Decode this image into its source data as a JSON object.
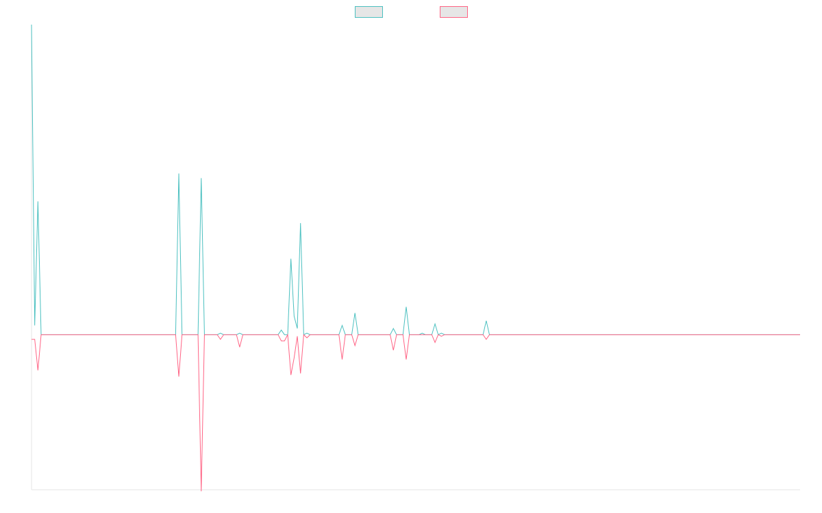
{
  "chart_data": {
    "type": "line",
    "title": "",
    "xlabel": "",
    "ylabel": "",
    "legend_placement": "top-center",
    "grid": false,
    "x_count": 241,
    "ylim": [
      -100,
      200
    ],
    "series": [
      {
        "color": "#4bc0c0",
        "legend_fill": "#e6e6e6",
        "points": [
          [
            0,
            200
          ],
          [
            1,
            6
          ],
          [
            2,
            86
          ],
          [
            3,
            0
          ],
          [
            45,
            0
          ],
          [
            46,
            104
          ],
          [
            47,
            0
          ],
          [
            52,
            0
          ],
          [
            53,
            101
          ],
          [
            54,
            0
          ],
          [
            58,
            0
          ],
          [
            59,
            1
          ],
          [
            60,
            0
          ],
          [
            64,
            0
          ],
          [
            65,
            1
          ],
          [
            66,
            0
          ],
          [
            77,
            0
          ],
          [
            78,
            3
          ],
          [
            79,
            0
          ],
          [
            80,
            0
          ],
          [
            81,
            49
          ],
          [
            82,
            12
          ],
          [
            83,
            4
          ],
          [
            84,
            72
          ],
          [
            85,
            0
          ],
          [
            86,
            1
          ],
          [
            87,
            0
          ],
          [
            96,
            0
          ],
          [
            97,
            6
          ],
          [
            98,
            0
          ],
          [
            100,
            0
          ],
          [
            101,
            14
          ],
          [
            102,
            0
          ],
          [
            112,
            0
          ],
          [
            113,
            4
          ],
          [
            114,
            0
          ],
          [
            116,
            0
          ],
          [
            117,
            18
          ],
          [
            118,
            0
          ],
          [
            121,
            0
          ],
          [
            122,
            1
          ],
          [
            123,
            0
          ],
          [
            125,
            0
          ],
          [
            126,
            7
          ],
          [
            127,
            0
          ],
          [
            128,
            1
          ],
          [
            129,
            0
          ],
          [
            141,
            0
          ],
          [
            142,
            9
          ],
          [
            143,
            0
          ],
          [
            240,
            0
          ]
        ]
      },
      {
        "color": "#ff6384",
        "legend_fill": "#e6e6e6",
        "points": [
          [
            0,
            -3
          ],
          [
            1,
            -3
          ],
          [
            2,
            -23
          ],
          [
            3,
            0
          ],
          [
            45,
            0
          ],
          [
            46,
            -27
          ],
          [
            47,
            0
          ],
          [
            52,
            0
          ],
          [
            53,
            -101
          ],
          [
            54,
            0
          ],
          [
            58,
            0
          ],
          [
            59,
            -3
          ],
          [
            60,
            0
          ],
          [
            64,
            0
          ],
          [
            65,
            -8
          ],
          [
            66,
            0
          ],
          [
            77,
            0
          ],
          [
            78,
            -4
          ],
          [
            79,
            -4
          ],
          [
            80,
            0
          ],
          [
            81,
            -26
          ],
          [
            82,
            -15
          ],
          [
            83,
            -1
          ],
          [
            84,
            -25
          ],
          [
            85,
            0
          ],
          [
            86,
            -2
          ],
          [
            87,
            0
          ],
          [
            96,
            0
          ],
          [
            97,
            -16
          ],
          [
            98,
            0
          ],
          [
            100,
            0
          ],
          [
            101,
            -7
          ],
          [
            102,
            0
          ],
          [
            112,
            0
          ],
          [
            113,
            -10
          ],
          [
            114,
            0
          ],
          [
            116,
            0
          ],
          [
            117,
            -16
          ],
          [
            118,
            0
          ],
          [
            125,
            0
          ],
          [
            126,
            -5
          ],
          [
            127,
            0
          ],
          [
            128,
            -1
          ],
          [
            129,
            0
          ],
          [
            141,
            0
          ],
          [
            142,
            -3
          ],
          [
            143,
            0
          ],
          [
            240,
            0
          ]
        ]
      }
    ]
  }
}
